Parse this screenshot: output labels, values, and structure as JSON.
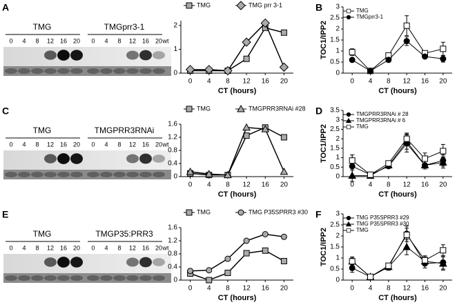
{
  "blots": [
    {
      "panel": "A",
      "groups": [
        "TMG",
        "TMGprr3-1"
      ],
      "lanes": [
        "0",
        "4",
        "8",
        "12",
        "16",
        "20"
      ],
      "control": "wt"
    },
    {
      "panel": "C",
      "groups": [
        "TMG",
        "TMGPRR3RNAi"
      ],
      "lanes": [
        "0",
        "4",
        "8",
        "12",
        "16",
        "20"
      ],
      "control": "wt"
    },
    {
      "panel": "E",
      "groups": [
        "TMG",
        "TMGP35:PRR3"
      ],
      "lanes": [
        "0",
        "4",
        "8",
        "12",
        "16",
        "20"
      ],
      "control": "wt"
    }
  ],
  "chart_data": [
    {
      "type": "line",
      "xlabel": "CT (hours)",
      "legend": "top",
      "x": [
        0,
        4,
        8,
        12,
        16,
        20
      ],
      "xlim": [
        -2,
        22
      ],
      "xticks": [
        0,
        4,
        8,
        12,
        16,
        20
      ],
      "ylim": [
        0,
        2.2
      ],
      "yticks": [
        0,
        1,
        2
      ],
      "series": [
        {
          "name": "TMG",
          "marker": "square",
          "color": "#aaaaaa",
          "values": [
            0.1,
            0.1,
            0.1,
            0.6,
            1.9,
            1.7
          ]
        },
        {
          "name": "TMG prr 3-1",
          "marker": "diamond",
          "color": "#aaaaaa",
          "values": [
            0.15,
            0.15,
            0.1,
            1.3,
            2.1,
            0.25
          ]
        }
      ]
    },
    {
      "type": "line",
      "panel": "B",
      "xlabel": "CT (hours)",
      "ylabel": "TOC1/IPP2",
      "legend": "upper left",
      "x": [
        0,
        4,
        8,
        12,
        16,
        20
      ],
      "xlim": [
        -2,
        22
      ],
      "xticks": [
        0,
        4,
        8,
        12,
        16,
        20
      ],
      "ylim": [
        0,
        3
      ],
      "yticks": [
        0,
        0.5,
        1,
        1.5,
        2,
        2.5,
        3
      ],
      "series": [
        {
          "name": "TMG",
          "marker": "open-square",
          "color": "#ffffff",
          "values": [
            0.95,
            0.1,
            0.8,
            2.15,
            0.9,
            1.1
          ],
          "errors": [
            0.15,
            0.05,
            0.1,
            0.45,
            0.1,
            0.3
          ]
        },
        {
          "name": "TMGprr3-1",
          "marker": "circle",
          "color": "#000000",
          "values": [
            0.6,
            0.1,
            0.6,
            1.45,
            0.75,
            0.65
          ],
          "errors": [
            0.05,
            0.05,
            0.1,
            0.2,
            0.05,
            0.15
          ]
        }
      ]
    },
    {
      "type": "line",
      "xlabel": "CT (hours)",
      "legend": "top",
      "x": [
        0,
        4,
        8,
        12,
        16,
        20
      ],
      "xlim": [
        -2,
        22
      ],
      "xticks": [
        0,
        4,
        8,
        12,
        16,
        20
      ],
      "ylim": [
        0,
        1.6
      ],
      "yticks": [
        0,
        0.4,
        0.8,
        1.2,
        1.6
      ],
      "series": [
        {
          "name": "TMG",
          "marker": "square",
          "color": "#aaaaaa",
          "values": [
            0.1,
            0.05,
            0.05,
            1.25,
            1.5,
            1.2
          ]
        },
        {
          "name": "TMGPRR3RNAi #28",
          "marker": "triangle",
          "color": "#aaaaaa",
          "values": [
            0.15,
            0.08,
            0.05,
            1.5,
            1.45,
            0.15
          ]
        }
      ]
    },
    {
      "type": "line",
      "panel": "D",
      "xlabel": "CT (hours)",
      "ylabel": "TOC1/IPP2",
      "legend": "upper left",
      "x": [
        0,
        4,
        8,
        12,
        16,
        20
      ],
      "xlim": [
        -2,
        22
      ],
      "xticks": [
        0,
        4,
        8,
        12,
        16,
        20
      ],
      "ylim": [
        0,
        3.5
      ],
      "yticks": [
        0,
        0.5,
        1,
        1.5,
        2,
        2.5,
        3,
        3.5
      ],
      "series": [
        {
          "name": "TMGPRR3RNAi # 28",
          "marker": "circle",
          "color": "#000000",
          "values": [
            0.55,
            0.1,
            0.55,
            1.75,
            0.6,
            0.85
          ],
          "errors": [
            0.6,
            0.05,
            0.1,
            0.45,
            0.2,
            0.3
          ]
        },
        {
          "name": "TMGPRR3RNAi # 6",
          "marker": "triangle",
          "color": "#000000",
          "values": [
            0.05,
            0.05,
            0.6,
            1.85,
            0.6,
            0.75
          ],
          "errors": [
            0.3,
            0.05,
            0.1,
            0.4,
            0.2,
            0.3
          ]
        },
        {
          "name": "TMG",
          "marker": "open-square",
          "color": "#ffffff",
          "values": [
            0.85,
            0.1,
            0.7,
            2.0,
            0.95,
            1.35
          ],
          "errors": [
            0.3,
            0.05,
            0.1,
            0.3,
            0.3,
            0.35
          ]
        }
      ]
    },
    {
      "type": "line",
      "xlabel": "CT (hours)",
      "legend": "top",
      "x": [
        0,
        4,
        8,
        12,
        16,
        20
      ],
      "xlim": [
        -2,
        22
      ],
      "xticks": [
        0,
        4,
        8,
        12,
        16,
        20
      ],
      "ylim": [
        0,
        1.6
      ],
      "yticks": [
        0,
        0.4,
        0.8,
        1.2,
        1.6
      ],
      "series": [
        {
          "name": "TMG",
          "marker": "square",
          "color": "#aaaaaa",
          "values": [
            0.2,
            0.0,
            0.22,
            0.82,
            0.9,
            0.58
          ]
        },
        {
          "name": "TMG P35SPRR3 #30",
          "marker": "circle",
          "color": "#aaaaaa",
          "values": [
            0.28,
            0.3,
            0.65,
            1.2,
            1.4,
            1.32
          ]
        }
      ]
    },
    {
      "type": "line",
      "panel": "F",
      "xlabel": "CT (hours)",
      "ylabel": "TOC1/IPP2",
      "legend": "upper left",
      "x": [
        0,
        4,
        8,
        12,
        16,
        20
      ],
      "xlim": [
        -2,
        22
      ],
      "xticks": [
        0,
        4,
        8,
        12,
        16,
        20
      ],
      "ylim": [
        0,
        3
      ],
      "yticks": [
        0,
        0.5,
        1,
        1.5,
        2,
        2.5,
        3
      ],
      "series": [
        {
          "name": "TMG P35SPRR3 #29",
          "marker": "circle",
          "color": "#000000",
          "values": [
            0.55,
            0.15,
            0.6,
            2.1,
            0.75,
            0.8
          ],
          "errors": [
            0.2,
            0.05,
            0.15,
            0.35,
            0.2,
            0.3
          ]
        },
        {
          "name": "TMG P35SPRR3 #30",
          "marker": "triangle",
          "color": "#000000",
          "values": [
            0.85,
            0.15,
            0.6,
            1.5,
            0.85,
            0.75
          ],
          "errors": [
            0.2,
            0.05,
            0.15,
            0.35,
            0.2,
            0.3
          ]
        },
        {
          "name": "TMG",
          "marker": "open-square",
          "color": "#ffffff",
          "values": [
            0.85,
            0.15,
            0.65,
            2.05,
            0.9,
            1.35
          ],
          "errors": [
            0.15,
            0.05,
            0.1,
            0.3,
            0.2,
            0.25
          ]
        }
      ]
    }
  ]
}
